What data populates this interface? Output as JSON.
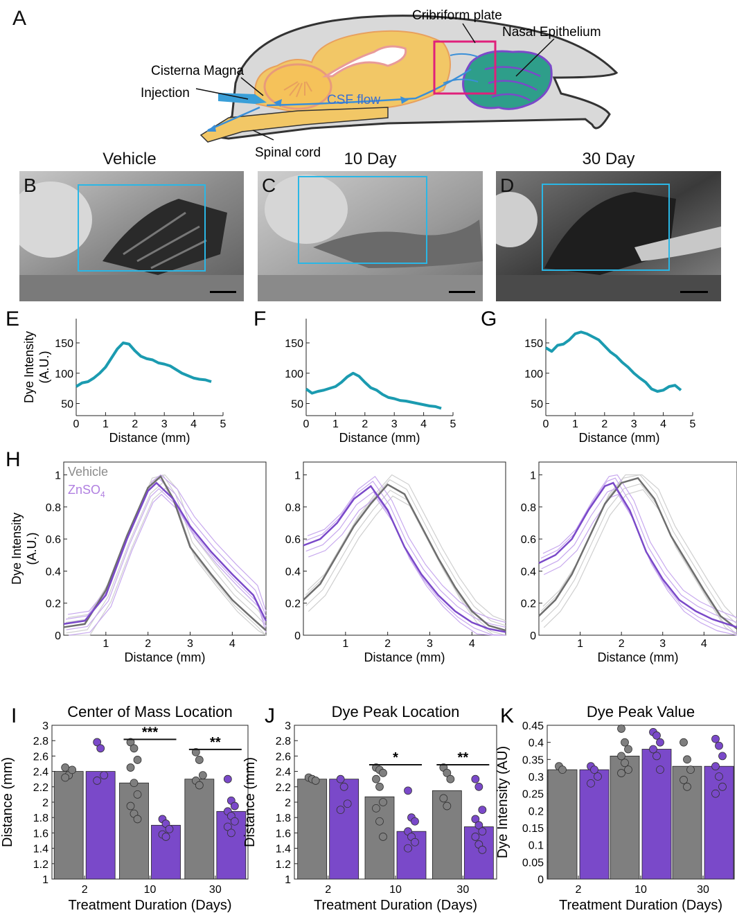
{
  "panels": {
    "A": "A",
    "B": "B",
    "C": "C",
    "D": "D",
    "E": "E",
    "F": "F",
    "G": "G",
    "H": "H",
    "I": "I",
    "J": "J",
    "K": "K"
  },
  "schematic": {
    "cribriform_plate": "Cribriform plate",
    "nasal_epithelium": "Nasal Epithelium",
    "cisterna_magna": "Cisterna Magna",
    "injection": "Injection",
    "csf_flow": "CSF flow",
    "spinal_cord": "Spinal cord",
    "colors": {
      "brain": "#f2c766",
      "skull": "#d9d9d9",
      "flow": "#3a8fd8",
      "box": "#e0207a",
      "nasal": "#2e9e8a"
    }
  },
  "photos": {
    "titles": [
      "Vehicle",
      "10 Day",
      "30 Day"
    ],
    "roi_color": "#2ab7e6"
  },
  "chart_data": [
    {
      "type": "line",
      "panel": "E",
      "ylabel": "Dye Intensity\n(A.U.)",
      "xlabel": "Distance (mm)",
      "xlim": [
        0,
        5
      ],
      "ylim": [
        30,
        190
      ],
      "xticks": [
        0,
        1,
        2,
        3,
        4,
        5
      ],
      "yticks": [
        50,
        100,
        150
      ],
      "series": [
        {
          "color": "#1b9bb0",
          "x": [
            0,
            0.2,
            0.4,
            0.6,
            0.8,
            1.0,
            1.2,
            1.4,
            1.6,
            1.8,
            2.0,
            2.2,
            2.4,
            2.6,
            2.8,
            3.0,
            3.2,
            3.4,
            3.6,
            3.8,
            4.0,
            4.2,
            4.4,
            4.6
          ],
          "y": [
            78,
            84,
            86,
            92,
            100,
            110,
            125,
            140,
            150,
            148,
            137,
            128,
            124,
            122,
            117,
            115,
            112,
            106,
            100,
            96,
            92,
            90,
            89,
            86
          ]
        }
      ]
    },
    {
      "type": "line",
      "panel": "F",
      "ylabel": "",
      "xlabel": "Distance (mm)",
      "xlim": [
        0,
        5
      ],
      "ylim": [
        30,
        190
      ],
      "xticks": [
        0,
        1,
        2,
        3,
        4,
        5
      ],
      "yticks": [
        50,
        100,
        150
      ],
      "series": [
        {
          "color": "#1b9bb0",
          "x": [
            0,
            0.2,
            0.4,
            0.6,
            0.8,
            1.0,
            1.2,
            1.4,
            1.6,
            1.8,
            2.0,
            2.2,
            2.4,
            2.6,
            2.8,
            3.0,
            3.2,
            3.4,
            3.6,
            3.8,
            4.0,
            4.2,
            4.4,
            4.6
          ],
          "y": [
            74,
            67,
            70,
            72,
            75,
            78,
            85,
            94,
            100,
            95,
            85,
            76,
            72,
            65,
            60,
            58,
            55,
            54,
            52,
            50,
            48,
            46,
            45,
            42
          ]
        }
      ]
    },
    {
      "type": "line",
      "panel": "G",
      "ylabel": "",
      "xlabel": "Distance (mm)",
      "xlim": [
        0,
        5
      ],
      "ylim": [
        30,
        190
      ],
      "xticks": [
        0,
        1,
        2,
        3,
        4,
        5
      ],
      "yticks": [
        50,
        100,
        150
      ],
      "series": [
        {
          "color": "#1b9bb0",
          "x": [
            0,
            0.2,
            0.4,
            0.6,
            0.8,
            1.0,
            1.2,
            1.4,
            1.6,
            1.8,
            2.0,
            2.2,
            2.4,
            2.6,
            2.8,
            3.0,
            3.2,
            3.4,
            3.6,
            3.8,
            4.0,
            4.2,
            4.4,
            4.6
          ],
          "y": [
            142,
            136,
            146,
            148,
            155,
            165,
            168,
            165,
            160,
            155,
            145,
            135,
            128,
            118,
            110,
            100,
            92,
            85,
            74,
            70,
            72,
            78,
            80,
            72
          ]
        }
      ]
    },
    {
      "type": "line",
      "panel": "H-vehicle",
      "ylabel": "Dye Intensity\n(A.U.)",
      "xlabel": "Distance (mm)",
      "xlim": [
        0,
        4.8
      ],
      "ylim": [
        0,
        1.08
      ],
      "xticks": [
        1,
        2,
        3,
        4
      ],
      "yticks": [
        0,
        0.2,
        0.4,
        0.6,
        0.8,
        1
      ],
      "legend": [
        {
          "label": "Vehicle",
          "color": "#8c8c8c"
        },
        {
          "label": "ZnSO",
          "sub": "4",
          "color": "#b07fe0"
        }
      ],
      "mean": [
        {
          "name": "Vehicle",
          "color": "#6e6e6e",
          "x": [
            0,
            0.5,
            1.0,
            1.5,
            2.0,
            2.3,
            2.6,
            3.0,
            3.5,
            4.0,
            4.5,
            4.8
          ],
          "y": [
            0.05,
            0.07,
            0.28,
            0.62,
            0.92,
            0.99,
            0.85,
            0.55,
            0.38,
            0.22,
            0.1,
            0.03
          ]
        },
        {
          "name": "ZnSO4",
          "color": "#7a49c9",
          "x": [
            0,
            0.5,
            1.0,
            1.5,
            2.0,
            2.2,
            2.6,
            3.0,
            3.5,
            4.0,
            4.5,
            4.8
          ],
          "y": [
            0.07,
            0.09,
            0.25,
            0.6,
            0.9,
            0.95,
            0.85,
            0.68,
            0.52,
            0.38,
            0.25,
            0.09
          ]
        }
      ]
    },
    {
      "type": "line",
      "panel": "H-10day",
      "ylabel": "",
      "xlabel": "Distance (mm)",
      "xlim": [
        0,
        4.8
      ],
      "ylim": [
        0,
        1.08
      ],
      "xticks": [
        1,
        2,
        3,
        4
      ],
      "yticks": [
        0,
        0.2,
        0.4,
        0.6,
        0.8,
        1
      ],
      "mean": [
        {
          "name": "Vehicle",
          "color": "#6e6e6e",
          "x": [
            0,
            0.4,
            0.8,
            1.2,
            1.6,
            2.0,
            2.4,
            2.8,
            3.2,
            3.6,
            4.0,
            4.4,
            4.8
          ],
          "y": [
            0.22,
            0.32,
            0.5,
            0.68,
            0.82,
            0.94,
            0.88,
            0.68,
            0.48,
            0.3,
            0.15,
            0.06,
            0.03
          ]
        },
        {
          "name": "ZnSO4",
          "color": "#7a49c9",
          "x": [
            0,
            0.4,
            0.8,
            1.2,
            1.6,
            2.0,
            2.4,
            2.8,
            3.2,
            3.6,
            4.0,
            4.4,
            4.8
          ],
          "y": [
            0.56,
            0.6,
            0.7,
            0.85,
            0.93,
            0.78,
            0.55,
            0.38,
            0.25,
            0.15,
            0.08,
            0.04,
            0.02
          ]
        }
      ]
    },
    {
      "type": "line",
      "panel": "H-30day",
      "ylabel": "",
      "xlabel": "Distance (mm)",
      "xlim": [
        0,
        4.8
      ],
      "ylim": [
        0,
        1.08
      ],
      "xticks": [
        1,
        2,
        3,
        4
      ],
      "yticks": [
        0,
        0.2,
        0.4,
        0.6,
        0.8,
        1
      ],
      "mean": [
        {
          "name": "Vehicle",
          "color": "#6e6e6e",
          "x": [
            0,
            0.4,
            0.8,
            1.2,
            1.6,
            2.0,
            2.4,
            2.8,
            3.2,
            3.6,
            4.0,
            4.4,
            4.8
          ],
          "y": [
            0.12,
            0.22,
            0.38,
            0.6,
            0.82,
            0.95,
            0.98,
            0.85,
            0.62,
            0.45,
            0.28,
            0.12,
            0.04
          ]
        },
        {
          "name": "ZnSO4",
          "color": "#7a49c9",
          "x": [
            0,
            0.4,
            0.8,
            1.2,
            1.6,
            1.8,
            2.2,
            2.6,
            3.0,
            3.4,
            3.8,
            4.2,
            4.8
          ],
          "y": [
            0.45,
            0.5,
            0.6,
            0.78,
            0.93,
            0.95,
            0.78,
            0.52,
            0.35,
            0.22,
            0.15,
            0.1,
            0.05
          ]
        }
      ]
    },
    {
      "type": "bar",
      "panel": "I",
      "title": "Center of Mass Location",
      "ylabel": "Distance (mm)",
      "xlabel": "Treatment Duration (Days)",
      "categories": [
        "2",
        "10",
        "30"
      ],
      "ylim": [
        1,
        3
      ],
      "yticks": [
        1,
        1.2,
        1.4,
        1.6,
        1.8,
        2,
        2.2,
        2.4,
        2.6,
        2.8,
        3
      ],
      "series": [
        {
          "name": "Vehicle",
          "color": "#7f7f7f",
          "values": [
            2.4,
            2.25,
            2.3
          ],
          "points": [
            [
              2.45,
              2.35,
              2.42,
              2.32
            ],
            [
              2.78,
              2.7,
              2.55,
              2.45,
              2.25,
              2.1,
              1.95,
              1.85,
              1.78
            ],
            [
              2.65,
              2.55,
              2.35,
              2.28,
              2.22
            ]
          ]
        },
        {
          "name": "ZnSO4",
          "color": "#7a49c9",
          "values": [
            2.4,
            1.7,
            1.88
          ],
          "points": [
            [
              2.78,
              2.7,
              2.35,
              2.28
            ],
            [
              1.78,
              1.72,
              1.65,
              1.58,
              1.55
            ],
            [
              2.3,
              2.02,
              1.95,
              1.88,
              1.82,
              1.75,
              1.68,
              1.6
            ]
          ]
        }
      ],
      "significance": [
        {
          "category": "10",
          "label": "***"
        },
        {
          "category": "30",
          "label": "**"
        }
      ]
    },
    {
      "type": "bar",
      "panel": "J",
      "title": "Dye Peak Location",
      "ylabel": "Distance (mm)",
      "xlabel": "Treatment Duration (Days)",
      "categories": [
        "2",
        "10",
        "30"
      ],
      "ylim": [
        1,
        3
      ],
      "yticks": [
        1,
        1.2,
        1.4,
        1.6,
        1.8,
        2,
        2.2,
        2.4,
        2.6,
        2.8,
        3
      ],
      "series": [
        {
          "name": "Vehicle",
          "color": "#7f7f7f",
          "values": [
            2.3,
            2.07,
            2.15
          ],
          "points": [
            [
              2.32,
              2.3,
              2.28
            ],
            [
              2.45,
              2.42,
              2.38,
              2.3,
              2.2,
              2.0,
              1.92,
              1.75,
              1.55
            ],
            [
              2.45,
              2.38,
              2.3,
              2.05,
              1.95
            ]
          ]
        },
        {
          "name": "ZnSO4",
          "color": "#7a49c9",
          "values": [
            2.3,
            1.62,
            1.68
          ],
          "points": [
            [
              2.3,
              2.2,
              1.98,
              1.9
            ],
            [
              2.15,
              1.8,
              1.75,
              1.62,
              1.55,
              1.48,
              1.4
            ],
            [
              2.3,
              2.2,
              1.9,
              1.78,
              1.7,
              1.62,
              1.55,
              1.45,
              1.38
            ]
          ]
        }
      ],
      "significance": [
        {
          "category": "10",
          "label": "*"
        },
        {
          "category": "30",
          "label": "**"
        }
      ]
    },
    {
      "type": "bar",
      "panel": "K",
      "title": "Dye Peak Value",
      "ylabel": "Dye Intensity (AU)",
      "xlabel": "Treatment Duration (Days)",
      "categories": [
        "2",
        "10",
        "30"
      ],
      "ylim": [
        0,
        0.45
      ],
      "yticks": [
        0,
        0.05,
        0.1,
        0.15,
        0.2,
        0.25,
        0.3,
        0.35,
        0.4,
        0.45
      ],
      "series": [
        {
          "name": "Vehicle",
          "color": "#7f7f7f",
          "values": [
            0.32,
            0.36,
            0.33
          ],
          "points": [
            [
              0.33,
              0.32
            ],
            [
              0.44,
              0.4,
              0.38,
              0.36,
              0.34,
              0.32,
              0.31
            ],
            [
              0.4,
              0.35,
              0.32,
              0.29,
              0.27
            ]
          ]
        },
        {
          "name": "ZnSO4",
          "color": "#7a49c9",
          "values": [
            0.32,
            0.38,
            0.33
          ],
          "points": [
            [
              0.33,
              0.32,
              0.3,
              0.28
            ],
            [
              0.43,
              0.42,
              0.4,
              0.38,
              0.36,
              0.32
            ],
            [
              0.41,
              0.39,
              0.36,
              0.33,
              0.3,
              0.27,
              0.25
            ]
          ]
        }
      ],
      "significance": []
    }
  ]
}
